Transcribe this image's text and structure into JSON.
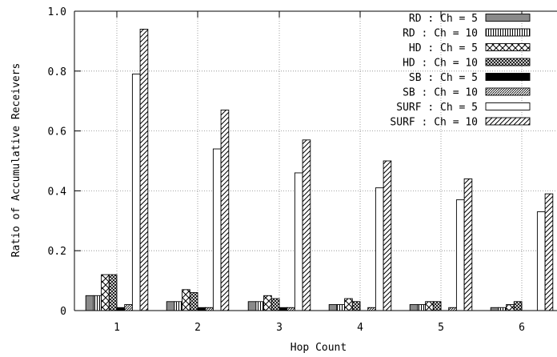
{
  "chart_data": {
    "type": "bar",
    "title": "",
    "xlabel": "Hop Count",
    "ylabel": "Ratio of Accumulative Receivers",
    "ylim": [
      0,
      1.0
    ],
    "yticks": [
      "0",
      "0.2",
      "0.4",
      "0.6",
      "0.8",
      "1.0"
    ],
    "categories": [
      "1",
      "2",
      "3",
      "4",
      "5",
      "6"
    ],
    "grid": true,
    "legend_position": "top-right",
    "series": [
      {
        "name": "RD : Ch = 5",
        "pattern": "gray",
        "values": [
          0.05,
          0.03,
          0.03,
          0.02,
          0.02,
          0.01
        ]
      },
      {
        "name": "RD : Ch = 10",
        "pattern": "vlines",
        "values": [
          0.05,
          0.03,
          0.03,
          0.02,
          0.02,
          0.01
        ]
      },
      {
        "name": "HD : Ch = 5",
        "pattern": "cross",
        "values": [
          0.12,
          0.07,
          0.05,
          0.04,
          0.03,
          0.02
        ]
      },
      {
        "name": "HD : Ch = 10",
        "pattern": "dense-cross",
        "values": [
          0.12,
          0.06,
          0.04,
          0.03,
          0.03,
          0.03
        ]
      },
      {
        "name": "SB : Ch = 5",
        "pattern": "black",
        "values": [
          0.01,
          0.01,
          0.01,
          0.0,
          0.0,
          0.0
        ]
      },
      {
        "name": "SB : Ch = 10",
        "pattern": "dense-diag",
        "values": [
          0.02,
          0.01,
          0.01,
          0.01,
          0.01,
          0.0
        ]
      },
      {
        "name": "SURF : Ch = 5",
        "pattern": "white",
        "values": [
          0.79,
          0.54,
          0.46,
          0.41,
          0.37,
          0.33
        ]
      },
      {
        "name": "SURF : Ch = 10",
        "pattern": "diag",
        "values": [
          0.94,
          0.67,
          0.57,
          0.5,
          0.44,
          0.39
        ]
      }
    ]
  }
}
